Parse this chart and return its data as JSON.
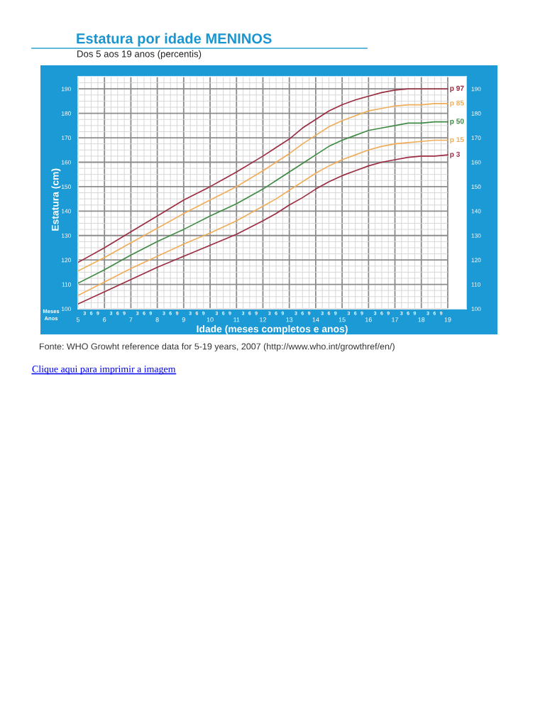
{
  "chart_data": {
    "type": "line",
    "title": "Estatura por idade MENINOS",
    "subtitle": "Dos 5 aos 19 anos (percentis)",
    "xlabel": "Idade (meses completos e anos)",
    "ylabel": "Estatura (cm)",
    "annotations": [
      "Meses",
      "Anos",
      "Fonte: WHO Growht reference data for 5-19 years, 2007 (http://www.who.int/growthref/en/)",
      "Clique aqui para imprimir a imagem",
      "3",
      "6",
      "9",
      "3",
      "6",
      "9",
      "3",
      "6",
      "9",
      "3",
      "6",
      "9",
      "3",
      "6",
      "9",
      "3",
      "6",
      "9",
      "3",
      "6",
      "9",
      "3",
      "6",
      "9",
      "3",
      "6",
      "9",
      "3",
      "6",
      "9",
      "3",
      "6",
      "9",
      "3",
      "6",
      "9",
      "3",
      "6",
      "9",
      "3",
      "6",
      "9"
    ],
    "x": [
      5,
      6,
      7,
      8,
      9,
      10,
      11,
      12,
      12.5,
      13,
      13.5,
      14,
      14.5,
      15,
      15.5,
      16,
      16.5,
      17,
      17.5,
      18,
      18.5,
      19
    ],
    "series": [
      {
        "name": "p 97",
        "color": "#9b2d43",
        "values": [
          119,
          125,
          131.5,
          138,
          144.5,
          150,
          156,
          162.5,
          166,
          169.5,
          174,
          177.5,
          181,
          183.5,
          185.5,
          187,
          188.5,
          189.5,
          190,
          190,
          190,
          190
        ]
      },
      {
        "name": "p 85",
        "color": "#f0ad5a",
        "values": [
          115.5,
          121,
          127,
          133,
          139,
          144.5,
          150,
          156.5,
          160,
          163.5,
          167.5,
          171,
          174.5,
          177,
          179,
          181,
          182,
          183,
          183.5,
          183.5,
          184,
          184
        ]
      },
      {
        "name": "p 50",
        "color": "#3f8b45",
        "values": [
          110.5,
          116,
          122,
          127.5,
          132.5,
          138,
          143,
          149,
          152.5,
          156,
          159.5,
          163,
          166.5,
          169,
          171,
          173,
          174,
          175,
          176,
          176,
          176.5,
          176.5
        ]
      },
      {
        "name": "p 15",
        "color": "#f0ad5a",
        "values": [
          105.5,
          111,
          116.5,
          121.5,
          126.5,
          131,
          136,
          142,
          145,
          148.5,
          152,
          155.5,
          158.5,
          161,
          163,
          165,
          166.5,
          167.5,
          168,
          168.5,
          169,
          169
        ]
      },
      {
        "name": "p 3",
        "color": "#9b2d43",
        "values": [
          102,
          107,
          112,
          117,
          121.5,
          126,
          130.5,
          136,
          139,
          142.5,
          145.5,
          149,
          152,
          154.5,
          156.5,
          158.5,
          160,
          161,
          162,
          162.5,
          162.5,
          163
        ]
      }
    ],
    "xlim": [
      5,
      19.7
    ],
    "xticks": [
      5,
      {
        "value": 5.25,
        "label": null
      },
      {
        "value": 5.5,
        "label": null
      },
      {
        "value": 5.75,
        "label": null
      },
      6,
      {
        "value": 6.25,
        "label": null
      },
      {
        "value": 6.5,
        "label": null
      },
      {
        "value": 6.75,
        "label": null
      },
      7,
      {
        "value": 7.25,
        "label": null
      },
      {
        "value": 7.5,
        "label": null
      },
      {
        "value": 7.75,
        "label": null
      },
      8,
      {
        "value": 8.25,
        "label": null
      },
      {
        "value": 8.5,
        "label": null
      },
      {
        "value": 8.75,
        "label": null
      },
      9,
      {
        "value": 9.25,
        "label": null
      },
      {
        "value": 9.5,
        "label": null
      },
      {
        "value": 9.75,
        "label": null
      },
      10,
      {
        "value": 10.25,
        "label": null
      },
      {
        "value": 10.5,
        "label": null
      },
      {
        "value": 10.75,
        "label": null
      },
      11,
      {
        "value": 11.25,
        "label": null
      },
      {
        "value": 11.5,
        "label": null
      },
      {
        "value": 11.75,
        "label": null
      },
      12,
      {
        "value": 12.25,
        "label": null
      },
      {
        "value": 12.5,
        "label": null
      },
      {
        "value": 12.75,
        "label": null
      },
      13,
      {
        "value": 13.25,
        "label": null
      },
      {
        "value": 13.5,
        "label": null
      },
      {
        "value": 13.75,
        "label": null
      },
      14,
      {
        "value": 14.25,
        "label": null
      },
      {
        "value": 14.5,
        "label": null
      },
      {
        "value": 14.75,
        "label": null
      },
      15,
      {
        "value": 15.25,
        "label": null
      },
      {
        "value": 15.5,
        "label": null
      },
      {
        "value": 15.75,
        "label": null
      },
      16,
      {
        "value": 16.25,
        "label": null
      },
      {
        "value": 16.5,
        "label": null
      },
      {
        "value": 16.75,
        "label": null
      },
      17,
      {
        "value": 17.25,
        "label": null
      },
      {
        "value": 17.5,
        "label": null
      },
      {
        "value": 17.75,
        "label": null
      },
      18,
      {
        "value": 18.25,
        "label": null
      },
      {
        "value": 18.5,
        "label": null
      },
      {
        "value": 18.75,
        "label": null
      },
      19
    ],
    "ylim": [
      100,
      195
    ],
    "yticks": [
      100,
      {
        "value": 102.5,
        "label": null
      },
      {
        "value": 105,
        "label": null
      },
      {
        "value": 107.5,
        "label": null
      },
      110,
      {
        "value": 112.5,
        "label": null
      },
      {
        "value": 115,
        "label": null
      },
      {
        "value": 117.5,
        "label": null
      },
      120,
      {
        "value": 122.5,
        "label": null
      },
      {
        "value": 125,
        "label": null
      },
      {
        "value": 127.5,
        "label": null
      },
      130,
      {
        "value": 132.5,
        "label": null
      },
      {
        "value": 135,
        "label": null
      },
      {
        "value": 137.5,
        "label": null
      },
      140,
      {
        "value": 142.5,
        "label": null
      },
      {
        "value": 145,
        "label": null
      },
      {
        "value": 147.5,
        "label": null
      },
      150,
      {
        "value": 152.5,
        "label": null
      },
      {
        "value": 155,
        "label": null
      },
      {
        "value": 157.5,
        "label": null
      },
      160,
      {
        "value": 162.5,
        "label": null
      },
      {
        "value": 165,
        "label": null
      },
      {
        "value": 167.5,
        "label": null
      },
      170,
      {
        "value": 172.5,
        "label": null
      },
      {
        "value": 175,
        "label": null
      },
      {
        "value": 177.5,
        "label": null
      },
      180,
      {
        "value": 182.5,
        "label": null
      },
      {
        "value": 185,
        "label": null
      },
      {
        "value": 187.5,
        "label": null
      },
      190,
      {
        "value": 192.5,
        "label": null
      }
    ],
    "y2lim": [
      100,
      195
    ],
    "y2ticks": [
      100,
      110,
      120,
      130,
      140,
      150,
      160,
      170,
      180,
      190
    ],
    "grid": true
  }
}
